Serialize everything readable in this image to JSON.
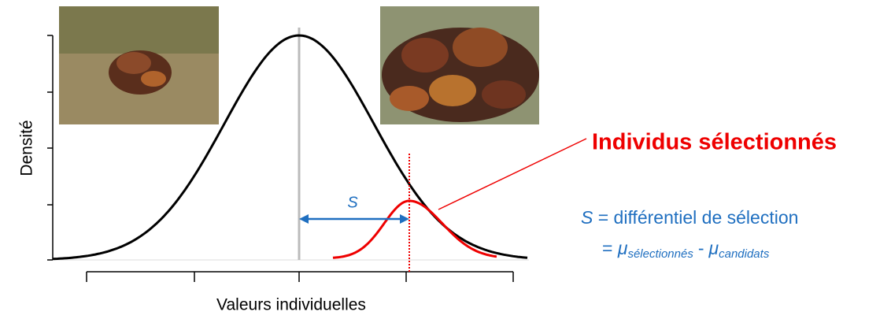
{
  "axes": {
    "y_label": "Densité",
    "x_label": "Valeurs individuelles"
  },
  "callout": "Individus sélectionnés",
  "arrow_label": "S",
  "definition": {
    "symbol": "S",
    "text": "= différentiel de sélection",
    "equals": "=",
    "mu_selected": "μ",
    "sub_selected": "sélectionnés",
    "minus": "-",
    "mu_candidates": "μ",
    "sub_candidates": "candidats"
  }
}
